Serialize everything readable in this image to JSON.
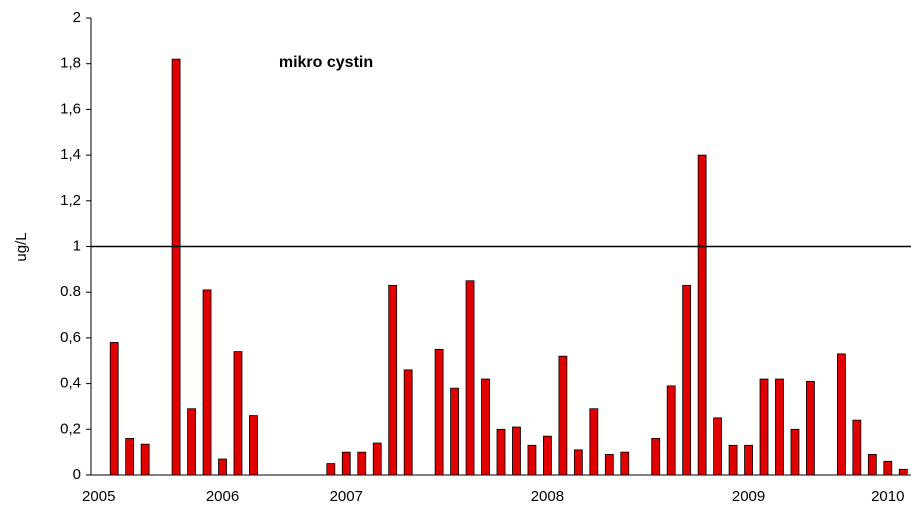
{
  "chart_data": {
    "type": "bar",
    "title": "mikro cystin",
    "ylabel": "ug/L",
    "categories": [
      "2005",
      null,
      null,
      null,
      null,
      null,
      null,
      null,
      "2006",
      null,
      null,
      null,
      null,
      null,
      null,
      null,
      "2007",
      null,
      null,
      null,
      null,
      null,
      null,
      null,
      null,
      null,
      null,
      null,
      null,
      "2008",
      null,
      null,
      null,
      null,
      null,
      null,
      null,
      null,
      null,
      null,
      null,
      null,
      "2009",
      null,
      null,
      null,
      null,
      null,
      null,
      null,
      null,
      "2010",
      null
    ],
    "values": [
      null,
      0.58,
      0.16,
      0.135,
      null,
      1.82,
      0.29,
      0.81,
      0.07,
      0.54,
      0.26,
      null,
      null,
      null,
      null,
      0.05,
      0.1,
      0.1,
      0.14,
      0.83,
      0.46,
      null,
      0.55,
      0.38,
      0.85,
      0.42,
      0.2,
      0.21,
      0.13,
      0.17,
      0.52,
      0.11,
      0.29,
      0.09,
      0.1,
      null,
      0.16,
      0.39,
      0.83,
      1.4,
      0.25,
      0.13,
      0.13,
      0.42,
      0.42,
      0.2,
      0.41,
      null,
      0.53,
      0.24,
      0.09,
      0.06,
      0.025
    ],
    "color": "#e00000",
    "reference_line": 1,
    "ylim": [
      0,
      2
    ],
    "yticks": [
      0,
      {
        "value": 0.2,
        "label": "0,2"
      },
      {
        "value": 0.4,
        "label": "0,4"
      },
      {
        "value": 0.6,
        "label": "0,6"
      },
      0.8,
      1,
      {
        "value": 1.2,
        "label": "1,2"
      },
      {
        "value": 1.4,
        "label": "1,4"
      },
      {
        "value": 1.6,
        "label": "1,6"
      },
      {
        "value": 1.8,
        "label": "1,8"
      },
      2
    ]
  }
}
